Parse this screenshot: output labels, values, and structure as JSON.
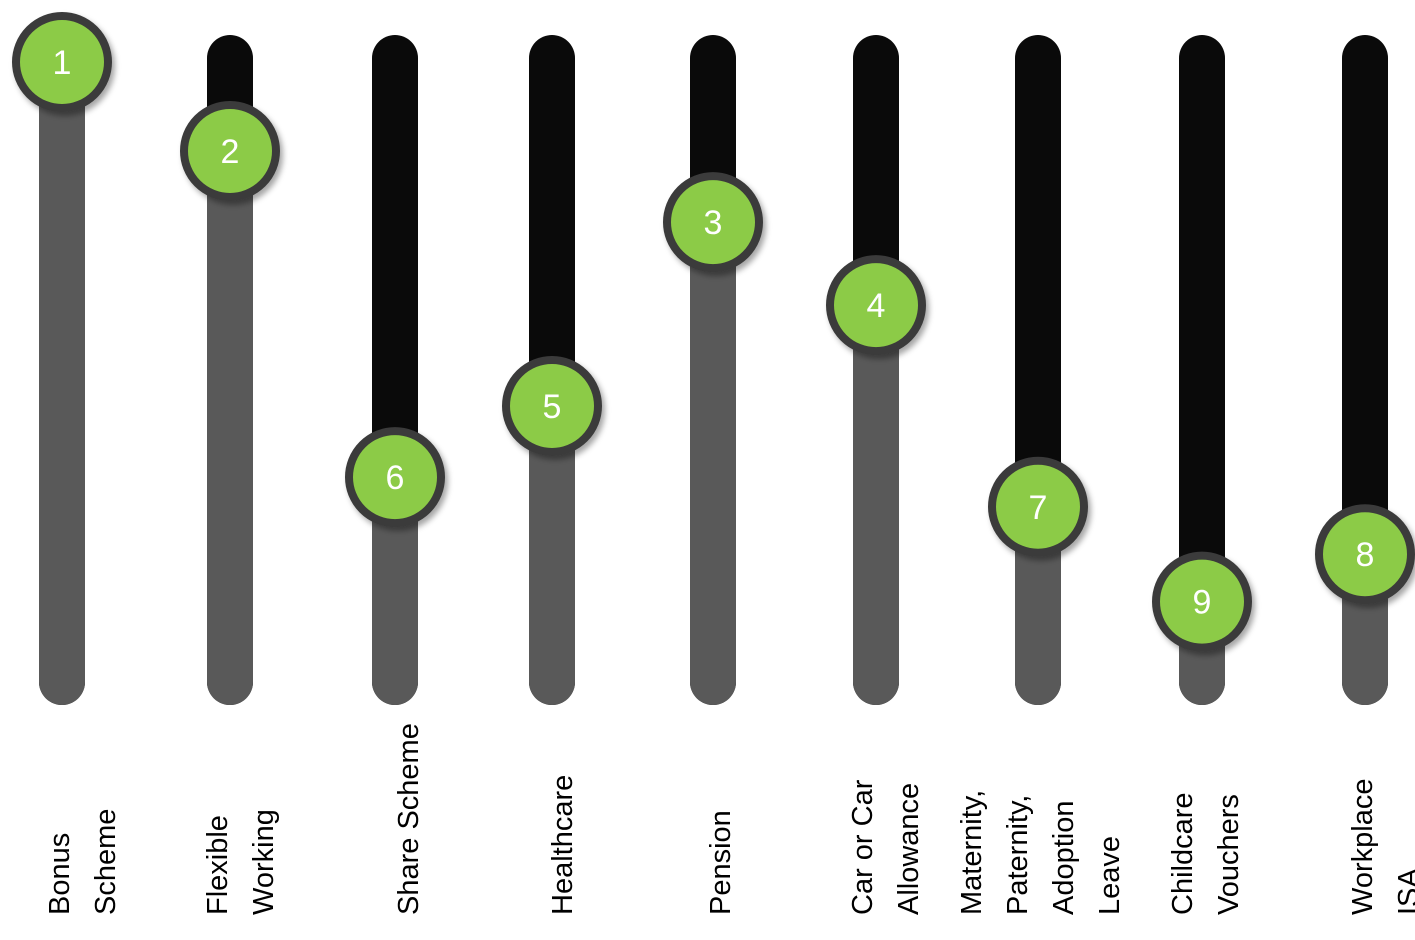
{
  "chart_data": {
    "type": "slider-ranking",
    "scale_note": "value = slider knob level from 0 (bottom) to 100 (top)",
    "ylim": [
      0,
      100
    ],
    "categories": [
      [
        "Bonus",
        "Scheme"
      ],
      [
        "Flexible",
        "Working"
      ],
      [
        "Share Scheme"
      ],
      [
        "Healthcare"
      ],
      [
        "Pension"
      ],
      [
        "Car or Car",
        "Allowance"
      ],
      [
        "Maternity,",
        "Paternity,",
        "Adoption",
        "Leave"
      ],
      [
        "Childcare",
        "Vouchers"
      ],
      [
        "Workplace",
        "ISA"
      ]
    ],
    "ranks": [
      "1",
      "2",
      "6",
      "5",
      "3",
      "4",
      "7",
      "9",
      "8"
    ],
    "values": [
      100,
      85,
      30,
      42,
      73,
      59,
      25,
      9,
      17
    ],
    "colors": {
      "track_top": "#0a0a0a",
      "track_fill": "#595959",
      "knob_fill": "#8ccb46",
      "knob_ring": "#3a3a3a",
      "number": "#ffffff",
      "label": "#000000"
    }
  }
}
